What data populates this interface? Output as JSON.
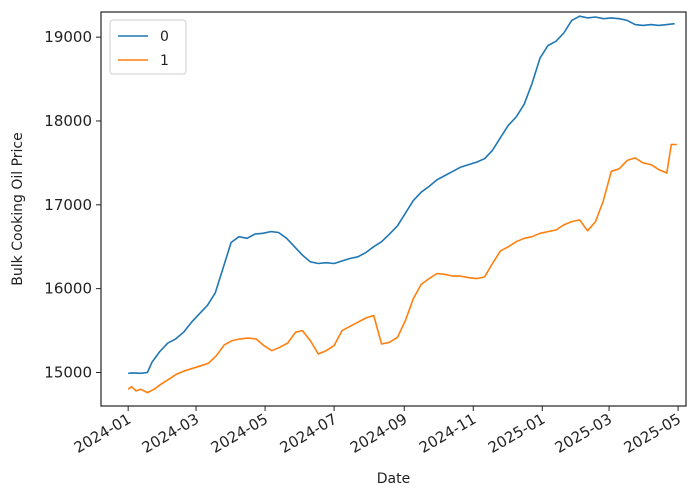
{
  "chart_data": {
    "type": "line",
    "xlabel": "Date",
    "ylabel": "Bulk Cooking Oil Price",
    "x_ticks": [
      "2024-01",
      "2024-03",
      "2024-05",
      "2024-07",
      "2024-09",
      "2024-11",
      "2025-01",
      "2025-03",
      "2025-05"
    ],
    "y_ticks": [
      15000,
      16000,
      17000,
      18000,
      19000
    ],
    "xlim": [
      "2023-12-08",
      "2025-05-08"
    ],
    "ylim": [
      14600,
      19300
    ],
    "grid": false,
    "legend_position": "top-left",
    "series": [
      {
        "name": "0",
        "color": "#1f77b4",
        "points": [
          [
            "2024-01-01",
            14990
          ],
          [
            "2024-01-05",
            14995
          ],
          [
            "2024-01-12",
            14990
          ],
          [
            "2024-01-18",
            15000
          ],
          [
            "2024-01-22",
            15120
          ],
          [
            "2024-01-29",
            15250
          ],
          [
            "2024-02-05",
            15350
          ],
          [
            "2024-02-12",
            15400
          ],
          [
            "2024-02-19",
            15480
          ],
          [
            "2024-02-26",
            15600
          ],
          [
            "2024-03-04",
            15700
          ],
          [
            "2024-03-11",
            15800
          ],
          [
            "2024-03-18",
            15950
          ],
          [
            "2024-03-25",
            16250
          ],
          [
            "2024-04-01",
            16550
          ],
          [
            "2024-04-08",
            16620
          ],
          [
            "2024-04-15",
            16600
          ],
          [
            "2024-04-22",
            16650
          ],
          [
            "2024-04-29",
            16660
          ],
          [
            "2024-05-06",
            16680
          ],
          [
            "2024-05-13",
            16670
          ],
          [
            "2024-05-20",
            16600
          ],
          [
            "2024-05-27",
            16500
          ],
          [
            "2024-06-03",
            16400
          ],
          [
            "2024-06-10",
            16320
          ],
          [
            "2024-06-17",
            16300
          ],
          [
            "2024-06-24",
            16310
          ],
          [
            "2024-07-01",
            16300
          ],
          [
            "2024-07-08",
            16330
          ],
          [
            "2024-07-15",
            16360
          ],
          [
            "2024-07-22",
            16380
          ],
          [
            "2024-07-29",
            16430
          ],
          [
            "2024-08-05",
            16500
          ],
          [
            "2024-08-12",
            16560
          ],
          [
            "2024-08-19",
            16650
          ],
          [
            "2024-08-26",
            16750
          ],
          [
            "2024-09-02",
            16900
          ],
          [
            "2024-09-09",
            17050
          ],
          [
            "2024-09-16",
            17150
          ],
          [
            "2024-09-23",
            17220
          ],
          [
            "2024-09-30",
            17300
          ],
          [
            "2024-10-07",
            17350
          ],
          [
            "2024-10-14",
            17400
          ],
          [
            "2024-10-21",
            17450
          ],
          [
            "2024-10-28",
            17480
          ],
          [
            "2024-11-04",
            17510
          ],
          [
            "2024-11-11",
            17550
          ],
          [
            "2024-11-18",
            17650
          ],
          [
            "2024-11-25",
            17800
          ],
          [
            "2024-12-02",
            17950
          ],
          [
            "2024-12-09",
            18050
          ],
          [
            "2024-12-16",
            18200
          ],
          [
            "2024-12-23",
            18450
          ],
          [
            "2024-12-30",
            18750
          ],
          [
            "2025-01-06",
            18900
          ],
          [
            "2025-01-13",
            18950
          ],
          [
            "2025-01-20",
            19050
          ],
          [
            "2025-01-27",
            19200
          ],
          [
            "2025-02-03",
            19250
          ],
          [
            "2025-02-10",
            19230
          ],
          [
            "2025-02-17",
            19240
          ],
          [
            "2025-02-24",
            19220
          ],
          [
            "2025-03-03",
            19230
          ],
          [
            "2025-03-10",
            19220
          ],
          [
            "2025-03-17",
            19200
          ],
          [
            "2025-03-24",
            19150
          ],
          [
            "2025-03-31",
            19140
          ],
          [
            "2025-04-07",
            19150
          ],
          [
            "2025-04-14",
            19140
          ],
          [
            "2025-04-21",
            19150
          ],
          [
            "2025-04-28",
            19160
          ]
        ]
      },
      {
        "name": "1",
        "color": "#ff7f0e",
        "points": [
          [
            "2024-01-01",
            14800
          ],
          [
            "2024-01-04",
            14830
          ],
          [
            "2024-01-08",
            14780
          ],
          [
            "2024-01-12",
            14800
          ],
          [
            "2024-01-18",
            14760
          ],
          [
            "2024-01-24",
            14800
          ],
          [
            "2024-01-30",
            14860
          ],
          [
            "2024-02-06",
            14920
          ],
          [
            "2024-02-13",
            14980
          ],
          [
            "2024-02-20",
            15020
          ],
          [
            "2024-02-27",
            15050
          ],
          [
            "2024-03-05",
            15080
          ],
          [
            "2024-03-12",
            15110
          ],
          [
            "2024-03-19",
            15200
          ],
          [
            "2024-03-26",
            15330
          ],
          [
            "2024-04-02",
            15380
          ],
          [
            "2024-04-09",
            15400
          ],
          [
            "2024-04-16",
            15410
          ],
          [
            "2024-04-23",
            15400
          ],
          [
            "2024-04-30",
            15320
          ],
          [
            "2024-05-07",
            15260
          ],
          [
            "2024-05-14",
            15300
          ],
          [
            "2024-05-21",
            15350
          ],
          [
            "2024-05-28",
            15480
          ],
          [
            "2024-06-03",
            15500
          ],
          [
            "2024-06-10",
            15380
          ],
          [
            "2024-06-17",
            15220
          ],
          [
            "2024-06-24",
            15260
          ],
          [
            "2024-07-01",
            15320
          ],
          [
            "2024-07-08",
            15500
          ],
          [
            "2024-07-15",
            15550
          ],
          [
            "2024-07-22",
            15600
          ],
          [
            "2024-07-29",
            15650
          ],
          [
            "2024-08-05",
            15680
          ],
          [
            "2024-08-12",
            15340
          ],
          [
            "2024-08-19",
            15360
          ],
          [
            "2024-08-26",
            15420
          ],
          [
            "2024-09-02",
            15620
          ],
          [
            "2024-09-09",
            15880
          ],
          [
            "2024-09-16",
            16050
          ],
          [
            "2024-09-23",
            16120
          ],
          [
            "2024-09-30",
            16180
          ],
          [
            "2024-10-07",
            16170
          ],
          [
            "2024-10-14",
            16150
          ],
          [
            "2024-10-21",
            16150
          ],
          [
            "2024-10-28",
            16130
          ],
          [
            "2024-11-04",
            16120
          ],
          [
            "2024-11-11",
            16140
          ],
          [
            "2024-11-18",
            16300
          ],
          [
            "2024-11-25",
            16450
          ],
          [
            "2024-12-02",
            16500
          ],
          [
            "2024-12-09",
            16560
          ],
          [
            "2024-12-16",
            16600
          ],
          [
            "2024-12-23",
            16620
          ],
          [
            "2024-12-30",
            16660
          ],
          [
            "2025-01-06",
            16680
          ],
          [
            "2025-01-13",
            16700
          ],
          [
            "2025-01-20",
            16760
          ],
          [
            "2025-01-27",
            16800
          ],
          [
            "2025-02-03",
            16820
          ],
          [
            "2025-02-10",
            16690
          ],
          [
            "2025-02-17",
            16800
          ],
          [
            "2025-02-24",
            17050
          ],
          [
            "2025-03-03",
            17400
          ],
          [
            "2025-03-10",
            17430
          ],
          [
            "2025-03-17",
            17530
          ],
          [
            "2025-03-24",
            17560
          ],
          [
            "2025-03-31",
            17500
          ],
          [
            "2025-04-07",
            17480
          ],
          [
            "2025-04-14",
            17420
          ],
          [
            "2025-04-21",
            17380
          ],
          [
            "2025-04-25",
            17720
          ],
          [
            "2025-04-30",
            17720
          ]
        ]
      }
    ]
  }
}
